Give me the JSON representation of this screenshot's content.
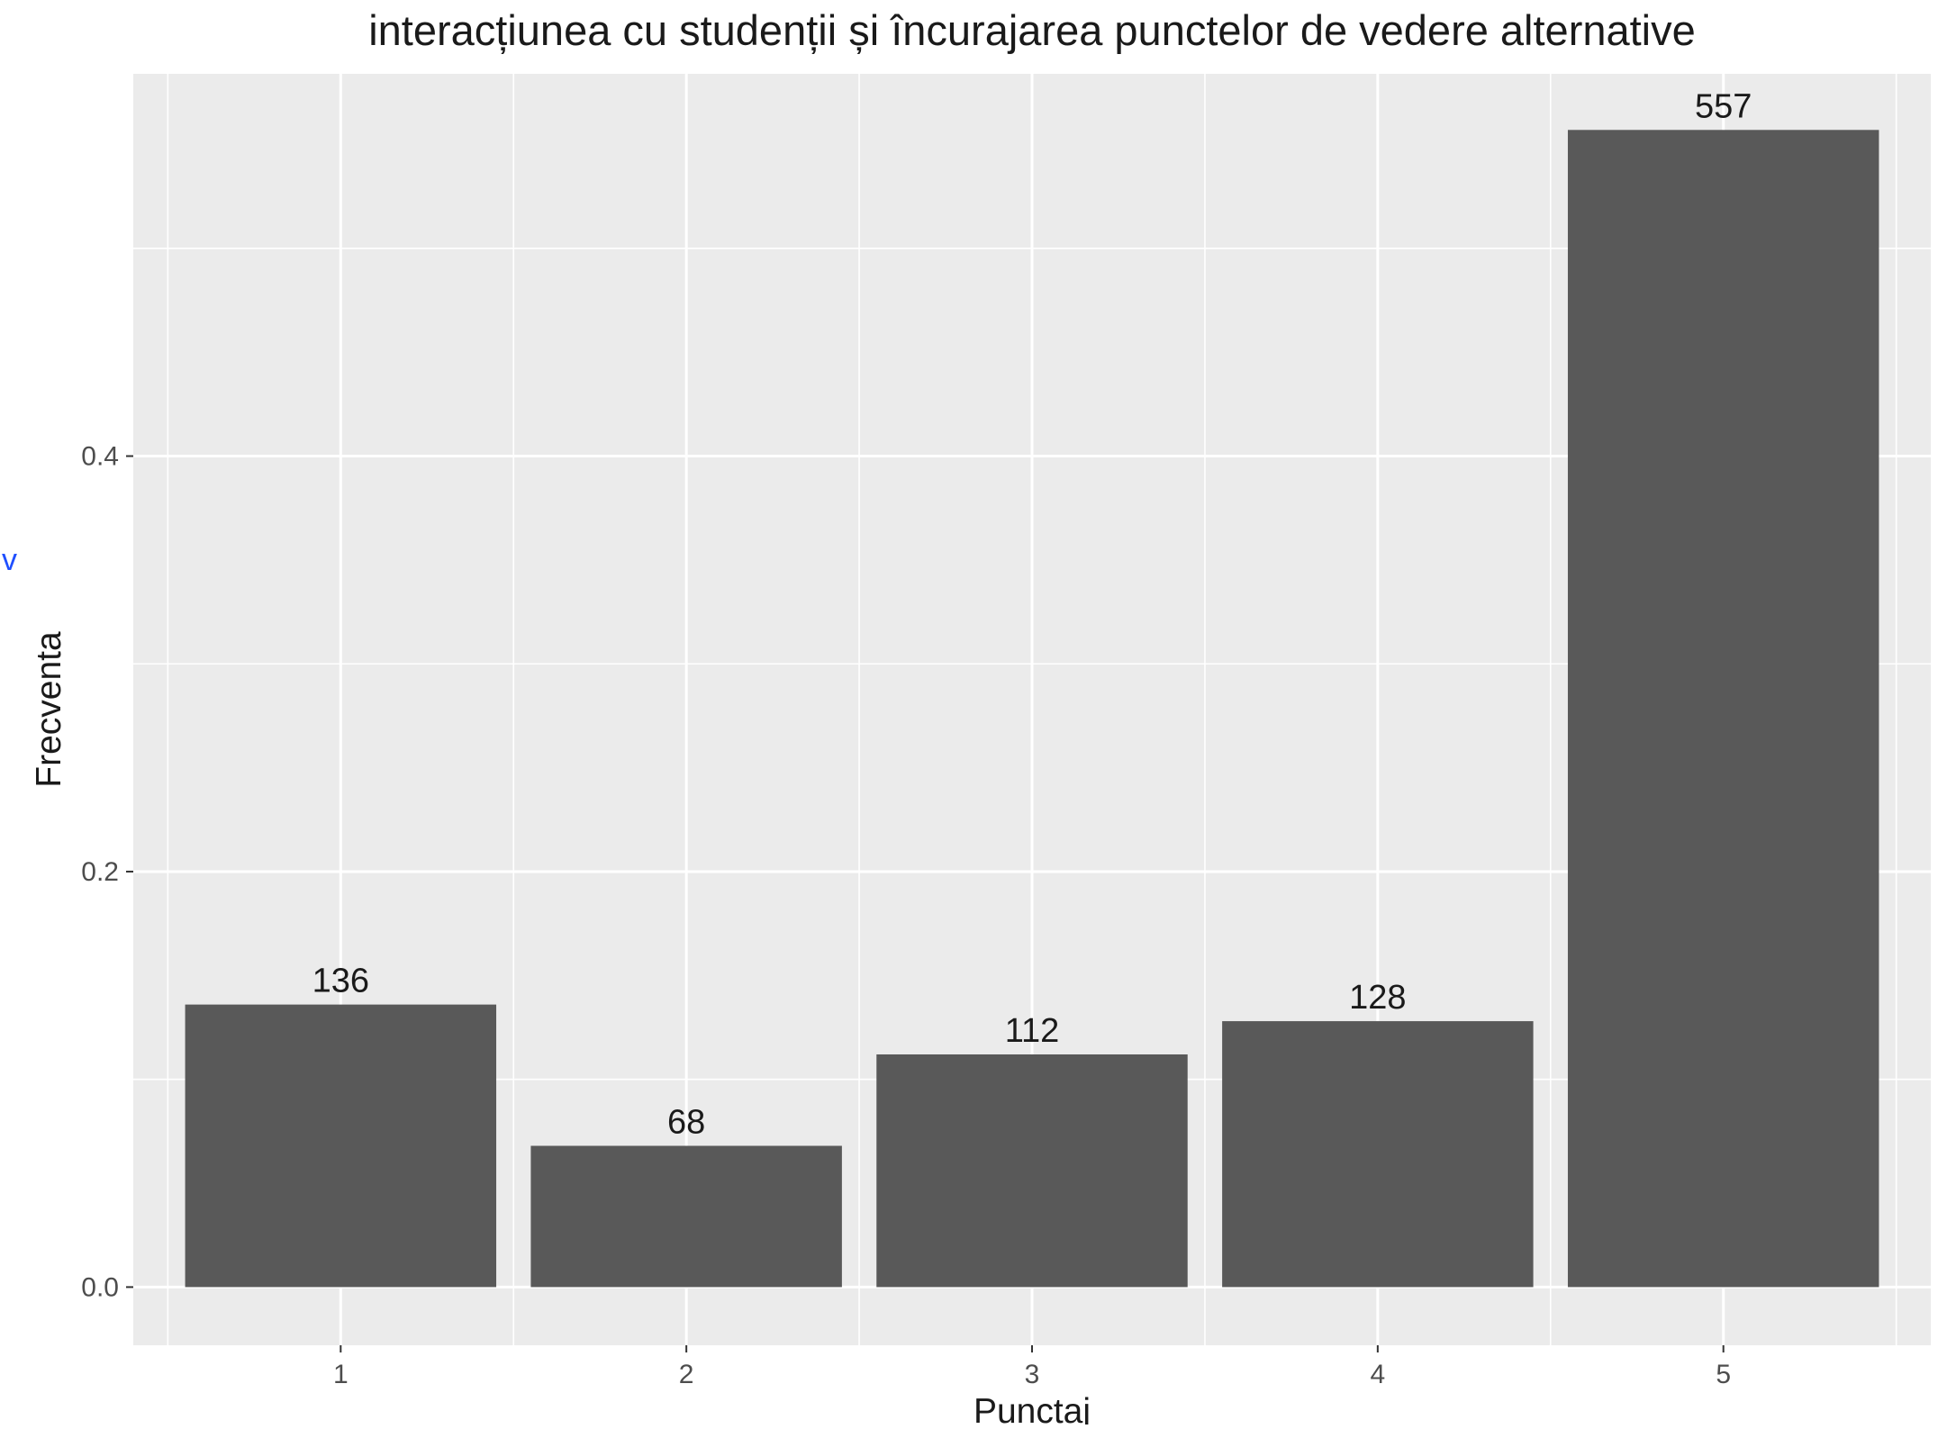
{
  "stray_mark": {
    "text": "v",
    "color": "#1f4fff"
  },
  "chart_data": {
    "type": "bar",
    "title": "interacțiunea cu studenții și încurajarea punctelor de vedere alternative",
    "xlabel": "Punctaj",
    "ylabel": "Frecventa",
    "categories": [
      "1",
      "2",
      "3",
      "4",
      "5"
    ],
    "values": [
      0.136,
      0.068,
      0.112,
      0.128,
      0.557
    ],
    "labels": [
      "136",
      "68",
      "112",
      "128",
      "557"
    ],
    "yticks": [
      0.0,
      0.2,
      0.4
    ],
    "ytick_labels": [
      "0.0",
      "0.2",
      "0.4"
    ],
    "ylim": [
      -0.028,
      0.584
    ],
    "grid": true,
    "legend": "none",
    "colors": {
      "panel": "#ebebeb",
      "grid": "#ffffff",
      "bar": "#595959",
      "tick": "#333333"
    }
  }
}
